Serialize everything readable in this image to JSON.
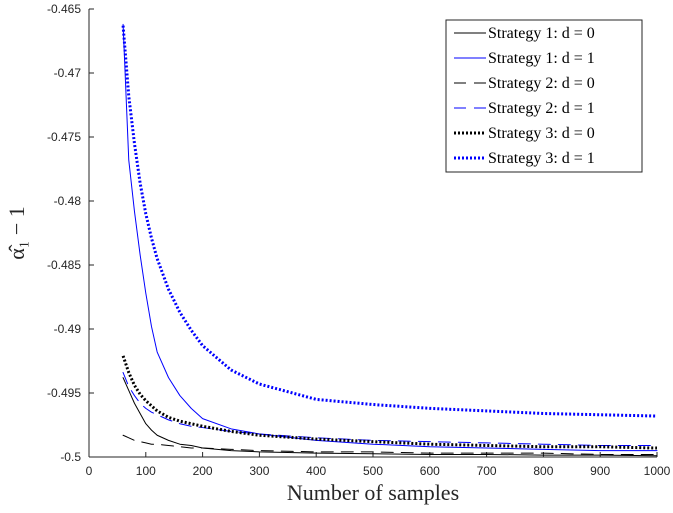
{
  "chart_data": {
    "type": "line",
    "xlabel": "Number of samples",
    "ylabel": "α̂₁ − 1",
    "xlim": [
      0,
      1000
    ],
    "ylim": [
      -0.5,
      -0.465
    ],
    "xticks": [
      0,
      100,
      200,
      300,
      400,
      500,
      600,
      700,
      800,
      900,
      1000
    ],
    "yticks": [
      -0.465,
      -0.47,
      -0.475,
      -0.48,
      -0.485,
      -0.49,
      -0.495,
      -0.5
    ],
    "xtick_labels": [
      "0",
      "100",
      "200",
      "300",
      "400",
      "500",
      "600",
      "700",
      "800",
      "900",
      "1000"
    ],
    "ytick_labels": [
      "-0.465",
      "-0.47",
      "-0.475",
      "-0.48",
      "-0.485",
      "-0.49",
      "-0.495",
      "-0.5"
    ],
    "grid": false,
    "legend_position": "top-right",
    "x": [
      60,
      70,
      80,
      90,
      100,
      110,
      120,
      140,
      160,
      180,
      200,
      250,
      300,
      400,
      500,
      600,
      700,
      800,
      900,
      1000
    ],
    "series": [
      {
        "name": "Strategy 1: d = 0",
        "color": "#000000",
        "dash": "solid",
        "width": 1,
        "values": [
          -0.4938,
          -0.4948,
          -0.4958,
          -0.4966,
          -0.4974,
          -0.4979,
          -0.4983,
          -0.4987,
          -0.499,
          -0.4991,
          -0.4993,
          -0.4995,
          -0.4996,
          -0.4997,
          -0.49975,
          -0.4998,
          -0.4998,
          -0.49985,
          -0.49985,
          -0.4999
        ]
      },
      {
        "name": "Strategy 1: d = 1",
        "color": "#0000ff",
        "dash": "solid",
        "width": 1,
        "values": [
          -0.4662,
          -0.4768,
          -0.4808,
          -0.4842,
          -0.4872,
          -0.4898,
          -0.4918,
          -0.4938,
          -0.4952,
          -0.4962,
          -0.497,
          -0.4978,
          -0.4982,
          -0.4987,
          -0.499,
          -0.4992,
          -0.4993,
          -0.4994,
          -0.4995,
          -0.4995
        ]
      },
      {
        "name": "Strategy 2: d = 0",
        "color": "#000000",
        "dash": "dashed",
        "width": 1,
        "values": [
          -0.4983,
          -0.4985,
          -0.4987,
          -0.4988,
          -0.4989,
          -0.499,
          -0.499,
          -0.4991,
          -0.4992,
          -0.4993,
          -0.4993,
          -0.4994,
          -0.4995,
          -0.4996,
          -0.4996,
          -0.4997,
          -0.4997,
          -0.4997,
          -0.4998,
          -0.4998
        ]
      },
      {
        "name": "Strategy 2: d = 1",
        "color": "#0000ff",
        "dash": "dashed",
        "width": 1,
        "values": [
          -0.4934,
          -0.4945,
          -0.4952,
          -0.4958,
          -0.4962,
          -0.4965,
          -0.4967,
          -0.4971,
          -0.4974,
          -0.4976,
          -0.4977,
          -0.498,
          -0.4982,
          -0.4985,
          -0.4987,
          -0.4988,
          -0.4989,
          -0.499,
          -0.4991,
          -0.4991
        ]
      },
      {
        "name": "Strategy 3: d = 0",
        "color": "#000000",
        "dash": "dotted",
        "width": 3,
        "values": [
          -0.4921,
          -0.4934,
          -0.4944,
          -0.4951,
          -0.4956,
          -0.496,
          -0.4964,
          -0.4969,
          -0.4972,
          -0.4974,
          -0.4976,
          -0.498,
          -0.4983,
          -0.4986,
          -0.4988,
          -0.499,
          -0.4991,
          -0.4992,
          -0.4992,
          -0.4993
        ]
      },
      {
        "name": "Strategy 3: d = 1",
        "color": "#0000ff",
        "dash": "dotted",
        "width": 3,
        "values": [
          -0.4663,
          -0.4718,
          -0.4755,
          -0.4786,
          -0.481,
          -0.4829,
          -0.4845,
          -0.4869,
          -0.4887,
          -0.4901,
          -0.4913,
          -0.4932,
          -0.4943,
          -0.4955,
          -0.4959,
          -0.4962,
          -0.4964,
          -0.4966,
          -0.4967,
          -0.4968
        ]
      }
    ]
  }
}
